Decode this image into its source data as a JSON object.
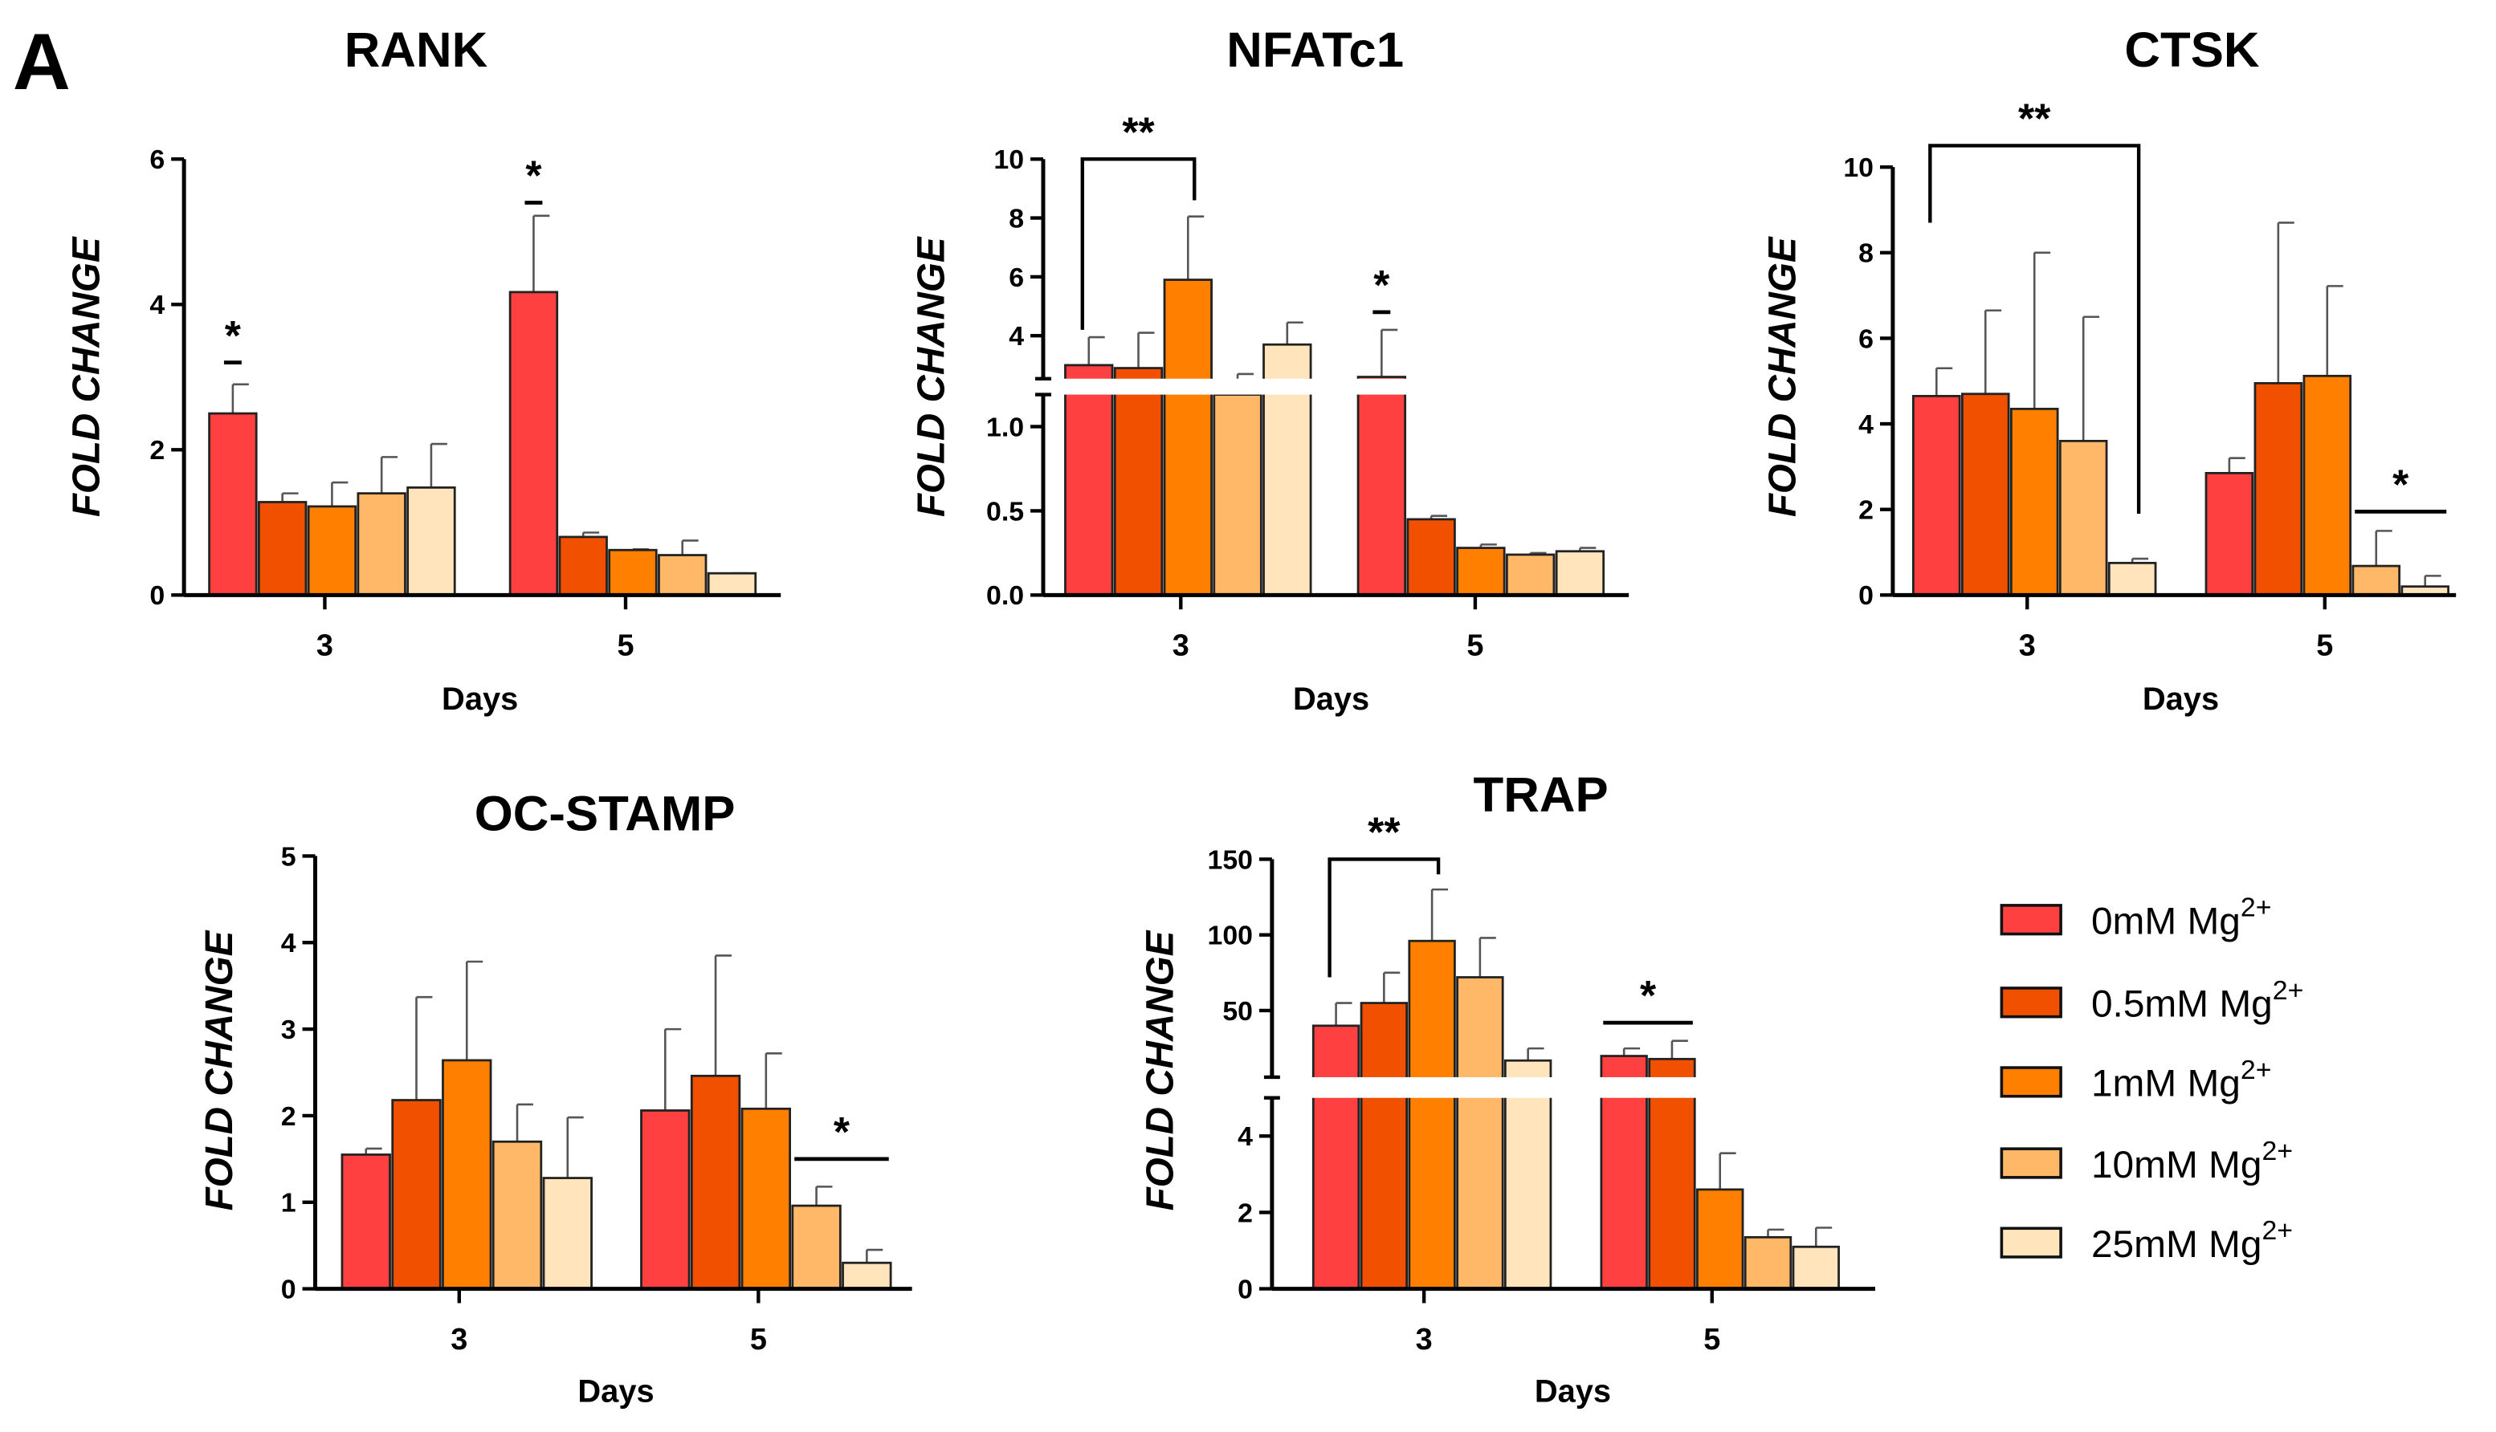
{
  "panel_label": "A",
  "legend": {
    "placement": "right",
    "items": [
      {
        "label": "0mM Mg",
        "superscript": "2+",
        "color": "#FF4040"
      },
      {
        "label": "0.5mM Mg",
        "superscript": "2+",
        "color": "#F05000"
      },
      {
        "label": "1mM Mg",
        "superscript": "2+",
        "color": "#FF8000"
      },
      {
        "label": "10mM Mg",
        "superscript": "2+",
        "color": "#FFB868"
      },
      {
        "label": "25mM Mg",
        "superscript": "2+",
        "color": "#FFE4BC"
      }
    ]
  },
  "chart_data": [
    {
      "type": "bar",
      "title": "RANK",
      "xlabel": "Days",
      "ylabel": "FOLD CHANGE",
      "categories": [
        "3",
        "5"
      ],
      "ylim": [
        0,
        6
      ],
      "y_ticks": [
        "0",
        "2",
        "4",
        "6"
      ],
      "y_tick_values": [
        0,
        2,
        4,
        6
      ],
      "series": [
        {
          "name": "0mM Mg2+",
          "values": [
            2.5,
            4.17
          ],
          "error_upper": [
            2.9,
            5.22
          ]
        },
        {
          "name": "0.5mM Mg2+",
          "values": [
            1.28,
            0.8
          ],
          "error_upper": [
            1.4,
            0.86
          ]
        },
        {
          "name": "1mM Mg2+",
          "values": [
            1.22,
            0.62
          ],
          "error_upper": [
            1.55,
            0.63
          ]
        },
        {
          "name": "10mM Mg2+",
          "values": [
            1.4,
            0.55
          ],
          "error_upper": [
            1.9,
            0.75
          ]
        },
        {
          "name": "25mM Mg2+",
          "values": [
            1.48,
            0.3
          ],
          "error_upper": [
            2.08,
            0.3
          ]
        }
      ],
      "annotations": [
        {
          "type": "line",
          "group": 0,
          "from": 0,
          "to": 0,
          "y": 3.2,
          "label": "*"
        },
        {
          "type": "line",
          "group": 1,
          "from": 0,
          "to": 0,
          "y": 5.4,
          "label": "*"
        }
      ]
    },
    {
      "type": "bar",
      "title": "NFATc1",
      "xlabel": "Days",
      "ylabel": "FOLD CHANGE",
      "categories": [
        "3",
        "5"
      ],
      "ylim": [
        0,
        10
      ],
      "axis_break": [
        1.2,
        2.5
      ],
      "y_ticks": [
        "0.0",
        "0.5",
        "1.0",
        "4",
        "6",
        "8",
        "10"
      ],
      "y_tick_values": [
        0,
        0.5,
        1.0,
        4,
        6,
        8,
        10
      ],
      "series": [
        {
          "name": "0mM Mg2+",
          "values": [
            3.0,
            2.6
          ],
          "error_upper": [
            3.95,
            4.2
          ]
        },
        {
          "name": "0.5mM Mg2+",
          "values": [
            2.9,
            0.45
          ],
          "error_upper": [
            4.1,
            0.47
          ]
        },
        {
          "name": "1mM Mg2+",
          "values": [
            5.9,
            0.28
          ],
          "error_upper": [
            8.05,
            0.3
          ]
        },
        {
          "name": "10mM Mg2+",
          "values": [
            2.3,
            0.24
          ],
          "error_upper": [
            2.7,
            0.25
          ]
        },
        {
          "name": "25mM Mg2+",
          "values": [
            3.7,
            0.26
          ],
          "error_upper": [
            4.45,
            0.28
          ]
        }
      ],
      "annotations": [
        {
          "type": "bracket",
          "group": 0,
          "from": 0,
          "to": 2,
          "y": 10,
          "leg_from": 4.2,
          "leg_to": 8.6,
          "label": "**"
        },
        {
          "type": "line",
          "group": 1,
          "from": 0,
          "to": 0,
          "y": 4.8,
          "label": "*"
        }
      ]
    },
    {
      "type": "bar",
      "title": "CTSK",
      "xlabel": "Days",
      "ylabel": "FOLD CHANGE",
      "categories": [
        "3",
        "5"
      ],
      "ylim": [
        0,
        10
      ],
      "y_ticks": [
        "0",
        "2",
        "4",
        "6",
        "8",
        "10"
      ],
      "y_tick_values": [
        0,
        2,
        4,
        6,
        8,
        10
      ],
      "series": [
        {
          "name": "0mM Mg2+",
          "values": [
            4.65,
            2.85
          ],
          "error_upper": [
            5.3,
            3.2
          ]
        },
        {
          "name": "0.5mM Mg2+",
          "values": [
            4.7,
            4.95
          ],
          "error_upper": [
            6.65,
            8.7
          ]
        },
        {
          "name": "1mM Mg2+",
          "values": [
            4.35,
            5.12
          ],
          "error_upper": [
            8.0,
            7.22
          ]
        },
        {
          "name": "10mM Mg2+",
          "values": [
            3.6,
            0.68
          ],
          "error_upper": [
            6.5,
            1.5
          ]
        },
        {
          "name": "25mM Mg2+",
          "values": [
            0.75,
            0.2
          ],
          "error_upper": [
            0.85,
            0.45
          ]
        }
      ],
      "annotations": [
        {
          "type": "bracket",
          "group": 0,
          "from": 0,
          "to": 4,
          "y": 10.5,
          "leg_from": 8.7,
          "leg_to": 1.9,
          "label": "**"
        },
        {
          "type": "line",
          "group": 1,
          "from": 3,
          "to": 4,
          "y": 1.95,
          "label": "*"
        }
      ]
    },
    {
      "type": "bar",
      "title": "OC-STAMP",
      "xlabel": "Days",
      "ylabel": "FOLD CHANGE",
      "categories": [
        "3",
        "5"
      ],
      "ylim": [
        0,
        5
      ],
      "y_ticks": [
        "0",
        "1",
        "2",
        "3",
        "4",
        "5"
      ],
      "y_tick_values": [
        0,
        1,
        2,
        3,
        4,
        5
      ],
      "series": [
        {
          "name": "0mM Mg2+",
          "values": [
            1.55,
            2.06
          ],
          "error_upper": [
            1.62,
            3.0
          ]
        },
        {
          "name": "0.5mM Mg2+",
          "values": [
            2.18,
            2.46
          ],
          "error_upper": [
            3.37,
            3.85
          ]
        },
        {
          "name": "1mM Mg2+",
          "values": [
            2.64,
            2.08
          ],
          "error_upper": [
            3.78,
            2.72
          ]
        },
        {
          "name": "10mM Mg2+",
          "values": [
            1.7,
            0.96
          ],
          "error_upper": [
            2.13,
            1.18
          ]
        },
        {
          "name": "25mM Mg2+",
          "values": [
            1.28,
            0.3
          ],
          "error_upper": [
            1.98,
            0.45
          ]
        }
      ],
      "annotations": [
        {
          "type": "line",
          "group": 1,
          "from": 3,
          "to": 4,
          "y": 1.5,
          "label": "*"
        }
      ]
    },
    {
      "type": "bar",
      "title": "TRAP",
      "xlabel": "Days",
      "ylabel": "FOLD CHANGE",
      "categories": [
        "3",
        "5"
      ],
      "ylim": [
        0,
        150
      ],
      "axis_break": [
        5,
        6
      ],
      "y_ticks": [
        "0",
        "2",
        "4",
        "50",
        "100",
        "150"
      ],
      "y_tick_values": [
        0,
        2,
        4,
        50,
        100,
        150
      ],
      "series": [
        {
          "name": "0mM Mg2+",
          "values": [
            40,
            20
          ],
          "error_upper": [
            55,
            25
          ]
        },
        {
          "name": "0.5mM Mg2+",
          "values": [
            55,
            18
          ],
          "error_upper": [
            75,
            30
          ]
        },
        {
          "name": "1mM Mg2+",
          "values": [
            96,
            2.6
          ],
          "error_upper": [
            130,
            3.55
          ]
        },
        {
          "name": "10mM Mg2+",
          "values": [
            72,
            1.35
          ],
          "error_upper": [
            98,
            1.55
          ]
        },
        {
          "name": "25mM Mg2+",
          "values": [
            17,
            1.1
          ],
          "error_upper": [
            25,
            1.6
          ]
        }
      ],
      "annotations": [
        {
          "type": "bracket",
          "group": 0,
          "from": 0,
          "to": 2,
          "y": 150,
          "leg_from": 72,
          "leg_to": 140,
          "label": "**"
        },
        {
          "type": "line",
          "group": 1,
          "from": 0,
          "to": 1,
          "y": 42,
          "label": "*"
        }
      ]
    }
  ]
}
